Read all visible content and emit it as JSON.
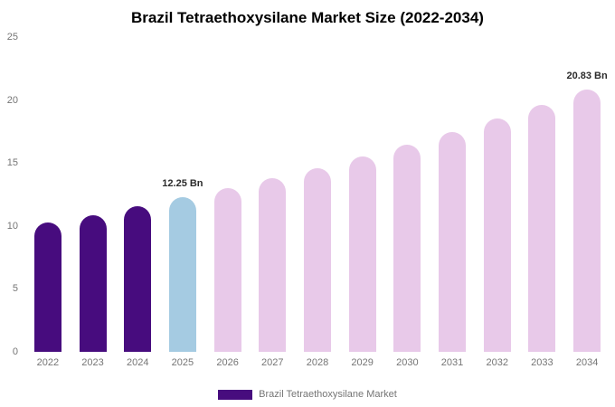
{
  "title": "Brazil Tetraethoxysilane Market Size (2022-2034)",
  "legend": {
    "label": "Brazil Tetraethoxysilane Market",
    "swatch_color": "#470c7e"
  },
  "colors": {
    "historical": "#470c7e",
    "current": "#a5cbe2",
    "forecast": "#e8c9e9"
  },
  "chart_data": {
    "type": "bar",
    "title": "Brazil Tetraethoxysilane Market Size (2022-2034)",
    "xlabel": "",
    "ylabel": "",
    "ylim": [
      0,
      25
    ],
    "yticks": [
      0,
      5,
      10,
      15,
      20,
      25
    ],
    "grid": false,
    "legend_position": "bottom",
    "categories": [
      "2022",
      "2023",
      "2024",
      "2025",
      "2026",
      "2027",
      "2028",
      "2029",
      "2030",
      "2031",
      "2032",
      "2033",
      "2034"
    ],
    "values": [
      10.26,
      10.88,
      11.55,
      12.25,
      12.99,
      13.78,
      14.62,
      15.51,
      16.45,
      17.45,
      18.51,
      19.64,
      20.83
    ],
    "bar_phases": [
      "historical",
      "historical",
      "historical",
      "current",
      "forecast",
      "forecast",
      "forecast",
      "forecast",
      "forecast",
      "forecast",
      "forecast",
      "forecast",
      "forecast"
    ],
    "annotations": [
      {
        "category": "2025",
        "text": "12.25 Bn"
      },
      {
        "category": "2034",
        "text": "20.83 Bn"
      }
    ]
  }
}
